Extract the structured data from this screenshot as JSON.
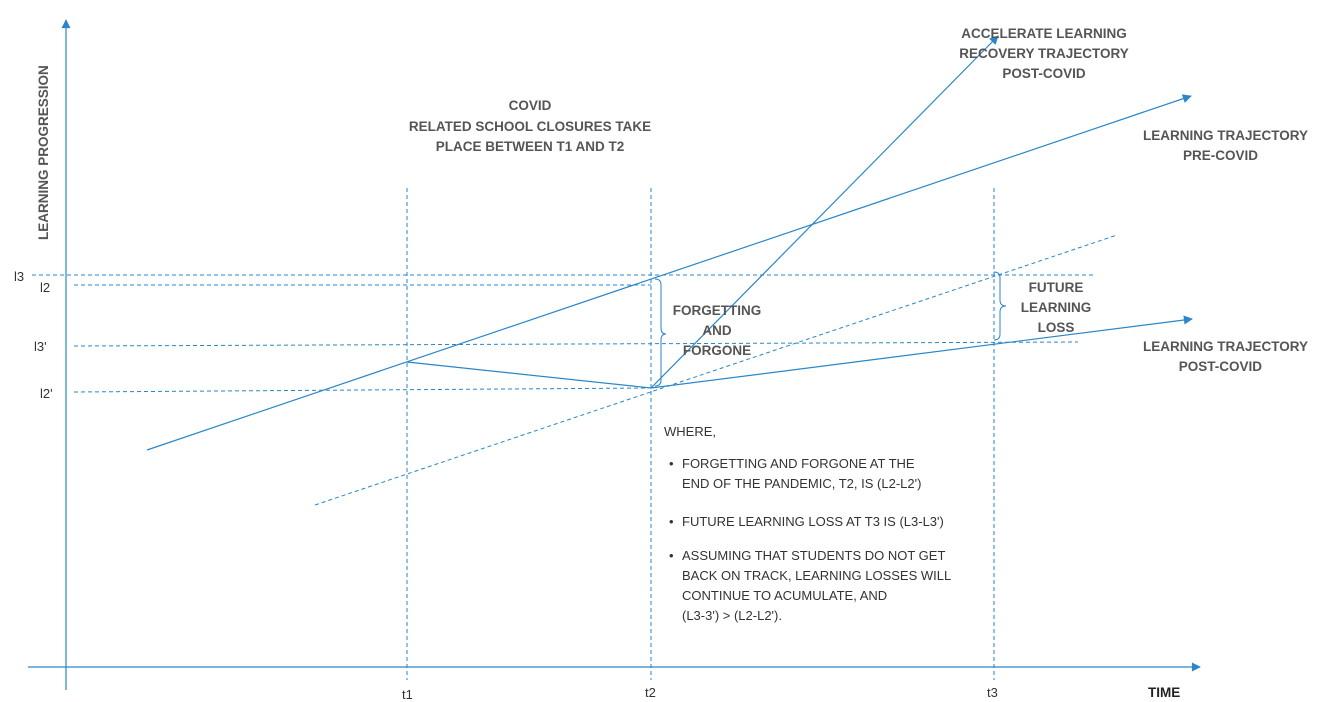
{
  "axes": {
    "y_label": "LEARNING PROGRESSION",
    "x_label": "TIME",
    "x_ticks": [
      "t1",
      "t2",
      "t3"
    ],
    "y_ticks": [
      "l3",
      "l2",
      "l3'",
      "l2'"
    ]
  },
  "covid_note": {
    "line1": "COVID",
    "line2": "RELATED SCHOOL CLOSURES TAKE",
    "line3": "PLACE BETWEEN T1 AND T2"
  },
  "trajectories": {
    "accelerate": [
      "ACCELERATE LEARNING",
      "RECOVERY TRAJECTORY",
      "POST-COVID"
    ],
    "pre_covid": [
      "LEARNING TRAJECTORY",
      "PRE-COVID"
    ],
    "post_covid": [
      "LEARNING TRAJECTORY",
      "POST-COVID"
    ]
  },
  "gaps": {
    "forgetting": [
      "FORGETTING",
      "AND",
      "FORGONE"
    ],
    "future_loss": [
      "FUTURE",
      "LEARNING",
      "LOSS"
    ]
  },
  "where": {
    "title": "WHERE,",
    "bullets": [
      [
        "FORGETTING AND FORGONE AT THE",
        "END OF THE PANDEMIC, T2, IS (L2-L2')"
      ],
      [
        "FUTURE LEARNING LOSS AT T3 IS (L3-L3')"
      ],
      [
        "ASSUMING THAT STUDENTS DO NOT GET",
        "BACK ON TRACK, LEARNING LOSSES WILL",
        "CONTINUE TO ACUMULATE, AND",
        "(L3-3') > (L2-L2')."
      ]
    ]
  },
  "colors": {
    "line": "#2a86c8",
    "text": "#555555"
  }
}
